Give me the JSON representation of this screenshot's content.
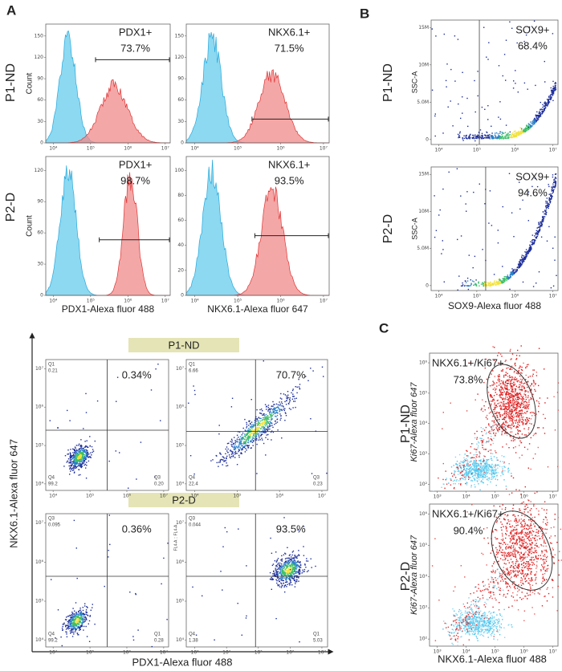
{
  "panel_labels": [
    "A",
    "B",
    "C"
  ],
  "histogram_panel": {
    "rows": [
      "P1-ND",
      "P2-D"
    ],
    "plots": [
      {
        "gate": "PDX1+",
        "percent": "73.7%",
        "y_label": "Count",
        "yticks": [
          0,
          30,
          60,
          90,
          120,
          150
        ],
        "xticks": [
          "10⁴",
          "10⁵",
          "10⁶",
          "10⁷"
        ]
      },
      {
        "gate": "NKX6.1+",
        "percent": "71.5%",
        "yticks": [
          0,
          30,
          60,
          90,
          120,
          150
        ],
        "xticks": [
          "10⁴",
          "10⁵",
          "10⁶",
          "10⁷"
        ]
      },
      {
        "gate": "PDX1+",
        "percent": "98.7%",
        "y_label": "Count",
        "yticks": [
          0,
          30,
          60,
          90,
          120
        ],
        "xticks": [
          "10⁴",
          "10⁵",
          "10⁶",
          "10⁷"
        ],
        "x_label": "PDX1-Alexa fluor 488"
      },
      {
        "gate": "NKX6.1+",
        "percent": "93.5%",
        "yticks": [
          0,
          20,
          40,
          60,
          80,
          100
        ],
        "xticks": [
          "10⁴",
          "10⁵",
          "10⁶",
          "10⁷"
        ],
        "x_label": "NKX6.1-Alexa fluor 647"
      }
    ]
  },
  "sox9_panel": {
    "rows": [
      "P1-ND",
      "P2-D"
    ],
    "x_label": "SOX9-Alexa fluor 488",
    "plots": [
      {
        "gate": "SOX9+",
        "percent": "68.4%",
        "y_label": "SSC-A",
        "yticks": [
          "0",
          "5.0M",
          "10M",
          "15M"
        ],
        "xticks": [
          "10⁴",
          "10⁵",
          "10⁶",
          "10⁷"
        ]
      },
      {
        "gate": "SOX9+",
        "percent": "94.6%",
        "y_label": "SSC-A",
        "yticks": [
          "0",
          "5.0M",
          "10M",
          "15M"
        ],
        "xticks": [
          "10⁴",
          "10⁵",
          "10⁶",
          "10⁷"
        ]
      }
    ]
  },
  "quadrant_panel": {
    "y_label": "NKX6.1-Alexa fluor 647",
    "x_label": "PDX1-Alexa fluor 488",
    "banners": [
      "P1-ND",
      "P2-D"
    ],
    "plots": [
      {
        "percent": "0.34%",
        "top_left": {
          "name": "Q1",
          "value": "0.21"
        },
        "bottom_left": {
          "name": "Q4",
          "value": "99.2"
        },
        "bottom_right": {
          "name": "Q3",
          "value": "0.20"
        },
        "yticks": [
          "10⁴",
          "10⁵",
          "10⁶",
          "10⁷"
        ],
        "xticks": [
          "10⁴",
          "10⁵",
          "10⁶",
          "10⁷"
        ]
      },
      {
        "percent": "70.7%",
        "top_left": {
          "name": "Q1",
          "value": "6.66"
        },
        "bottom_left": {
          "name": "Q4",
          "value": "22.4"
        },
        "bottom_right": {
          "name": "Q3",
          "value": "0.23"
        },
        "yticks": [
          "10⁴",
          "10⁵",
          "10⁶",
          "10⁷"
        ],
        "xticks": [
          "10⁴",
          "10⁵",
          "10⁶",
          "10⁷"
        ]
      },
      {
        "percent": "0.36%",
        "top_left": {
          "name": "Q3",
          "value": "0.095"
        },
        "bottom_left": {
          "name": "Q4",
          "value": "99.2"
        },
        "bottom_right": {
          "name": "Q1",
          "value": "0.28"
        },
        "yticks": [
          "10⁴",
          "10⁵",
          "10⁶",
          "10⁷"
        ],
        "xticks": [
          "10⁴",
          "10⁵",
          "10⁶",
          "10⁷"
        ]
      },
      {
        "percent": "93.5%",
        "top_left": {
          "name": "Q3",
          "value": "0.044"
        },
        "bottom_left": {
          "name": "Q4",
          "value": "1.38"
        },
        "bottom_right": {
          "name": "Q1",
          "value": "5.03"
        },
        "axis_note": "FL4-A :: FL4-A",
        "yticks": [
          "10⁴",
          "10⁵",
          "10⁶",
          "10⁷"
        ],
        "xticks": [
          "10³",
          "10⁴",
          "10⁵",
          "10⁶",
          "10⁷"
        ]
      }
    ]
  },
  "ki67_panel": {
    "rows": [
      "P1-ND",
      "P2-D"
    ],
    "x_label": "NKX6.1-Alexa fluor 488",
    "plots": [
      {
        "gate": "NKX6.1+/Ki67+",
        "percent": "73.8%",
        "y_label": "Ki67-Alexa fluor 647",
        "yticks": [
          "10²",
          "10³",
          "10⁴",
          "10⁵",
          "10⁶"
        ],
        "xticks": [
          "10³",
          "10⁴",
          "10⁵",
          "10⁶",
          "10⁷"
        ]
      },
      {
        "gate": "NKX6.1+/Ki67+",
        "percent": "90.4%",
        "y_label": "Ki67-Alexa fluor 647",
        "yticks": [
          "10²",
          "10³",
          "10⁴",
          "10⁵",
          "10⁶"
        ],
        "xticks": [
          "10³",
          "10⁴",
          "10⁵",
          "10⁶",
          "10⁷"
        ]
      }
    ]
  }
}
